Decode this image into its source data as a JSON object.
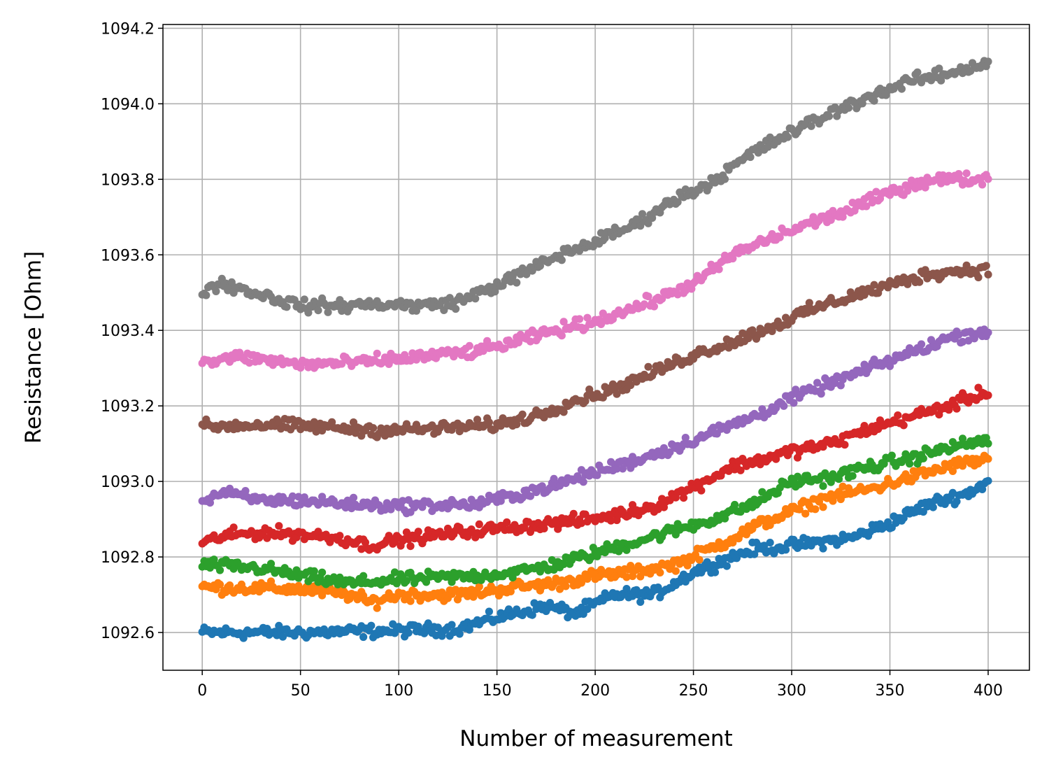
{
  "chart_data": {
    "type": "scatter",
    "title": "",
    "xlabel": "Number of measurement",
    "ylabel": "Resistance [Ohm]",
    "xlim": [
      -20,
      421
    ],
    "ylim": [
      1092.5,
      1094.21
    ],
    "xticks": [
      0,
      50,
      100,
      150,
      200,
      250,
      300,
      350,
      400
    ],
    "xtick_labels": [
      "0",
      "50",
      "100",
      "150",
      "200",
      "250",
      "300",
      "350",
      "400"
    ],
    "yticks": [
      1092.6,
      1092.8,
      1093.0,
      1093.2,
      1093.4,
      1093.6,
      1093.8,
      1094.0,
      1094.2
    ],
    "ytick_labels": [
      "1092.6",
      "1092.8",
      "1093.0",
      "1093.2",
      "1093.4",
      "1093.6",
      "1093.8",
      "1094.0",
      "1094.2"
    ],
    "grid": true,
    "legend": "none",
    "points_per_series": 401,
    "series": [
      {
        "color": "#1f77b4",
        "x": [
          0,
          50,
          100,
          130,
          150,
          175,
          190,
          210,
          230,
          250,
          280,
          300,
          330,
          350,
          370,
          390,
          400
        ],
        "values": [
          1092.6,
          1092.6,
          1092.605,
          1092.61,
          1092.64,
          1092.67,
          1092.65,
          1092.7,
          1092.7,
          1092.76,
          1092.82,
          1092.83,
          1092.85,
          1092.89,
          1092.94,
          1092.97,
          1093.0
        ]
      },
      {
        "color": "#ff7f0e",
        "x": [
          0,
          50,
          75,
          85,
          100,
          130,
          160,
          180,
          200,
          220,
          240,
          250,
          270,
          285,
          300,
          320,
          340,
          360,
          380,
          400
        ],
        "values": [
          1092.72,
          1092.715,
          1092.7,
          1092.68,
          1092.7,
          1092.7,
          1092.72,
          1092.73,
          1092.75,
          1092.76,
          1092.78,
          1092.8,
          1092.85,
          1092.89,
          1092.92,
          1092.96,
          1092.98,
          1093.01,
          1093.04,
          1093.06
        ]
      },
      {
        "color": "#2ca02c",
        "x": [
          0,
          30,
          50,
          75,
          100,
          140,
          160,
          180,
          200,
          220,
          240,
          260,
          280,
          300,
          320,
          340,
          360,
          380,
          400
        ],
        "values": [
          1092.78,
          1092.77,
          1092.75,
          1092.73,
          1092.74,
          1092.75,
          1092.76,
          1092.78,
          1092.81,
          1092.84,
          1092.87,
          1092.9,
          1092.94,
          1093.0,
          1093.01,
          1093.04,
          1093.06,
          1093.09,
          1093.11
        ]
      },
      {
        "color": "#d62728",
        "x": [
          0,
          10,
          30,
          50,
          70,
          85,
          100,
          130,
          160,
          190,
          210,
          230,
          250,
          270,
          290,
          300,
          320,
          340,
          360,
          380,
          400
        ],
        "values": [
          1092.835,
          1092.855,
          1092.865,
          1092.86,
          1092.85,
          1092.83,
          1092.845,
          1092.865,
          1092.88,
          1092.895,
          1092.91,
          1092.935,
          1092.985,
          1093.04,
          1093.065,
          1093.08,
          1093.1,
          1093.14,
          1093.17,
          1093.2,
          1093.24
        ]
      },
      {
        "color": "#9467bd",
        "x": [
          0,
          10,
          30,
          50,
          75,
          100,
          140,
          160,
          180,
          200,
          220,
          240,
          260,
          280,
          300,
          320,
          340,
          360,
          380,
          400
        ],
        "values": [
          1092.945,
          1092.97,
          1092.95,
          1092.95,
          1092.94,
          1092.935,
          1092.94,
          1092.965,
          1092.99,
          1093.025,
          1093.055,
          1093.09,
          1093.13,
          1093.17,
          1093.22,
          1093.26,
          1093.3,
          1093.34,
          1093.38,
          1093.4
        ]
      },
      {
        "color": "#8c564b",
        "x": [
          0,
          30,
          60,
          90,
          120,
          150,
          170,
          190,
          210,
          230,
          250,
          270,
          290,
          310,
          330,
          350,
          370,
          390,
          400
        ],
        "values": [
          1093.145,
          1093.15,
          1093.145,
          1093.135,
          1093.14,
          1093.15,
          1093.175,
          1093.215,
          1093.245,
          1093.29,
          1093.335,
          1093.37,
          1093.41,
          1093.455,
          1093.49,
          1093.52,
          1093.55,
          1093.56,
          1093.56
        ]
      },
      {
        "color": "#e377c2",
        "x": [
          0,
          20,
          50,
          80,
          110,
          140,
          160,
          180,
          200,
          220,
          240,
          255,
          270,
          290,
          310,
          330,
          350,
          370,
          390,
          400
        ],
        "values": [
          1093.315,
          1093.33,
          1093.31,
          1093.315,
          1093.33,
          1093.345,
          1093.37,
          1093.4,
          1093.425,
          1093.46,
          1093.5,
          1093.54,
          1093.6,
          1093.645,
          1093.685,
          1093.72,
          1093.765,
          1093.8,
          1093.8,
          1093.8
        ]
      },
      {
        "color": "#7f7f7f",
        "x": [
          0,
          10,
          30,
          50,
          70,
          90,
          110,
          130,
          150,
          165,
          180,
          200,
          220,
          240,
          260,
          280,
          300,
          320,
          340,
          360,
          380,
          400
        ],
        "values": [
          1093.505,
          1093.525,
          1093.495,
          1093.465,
          1093.465,
          1093.47,
          1093.465,
          1093.475,
          1093.52,
          1093.555,
          1093.595,
          1093.635,
          1093.68,
          1093.745,
          1093.795,
          1093.87,
          1093.925,
          1093.975,
          1094.02,
          1094.06,
          1094.08,
          1094.11
        ]
      }
    ]
  }
}
